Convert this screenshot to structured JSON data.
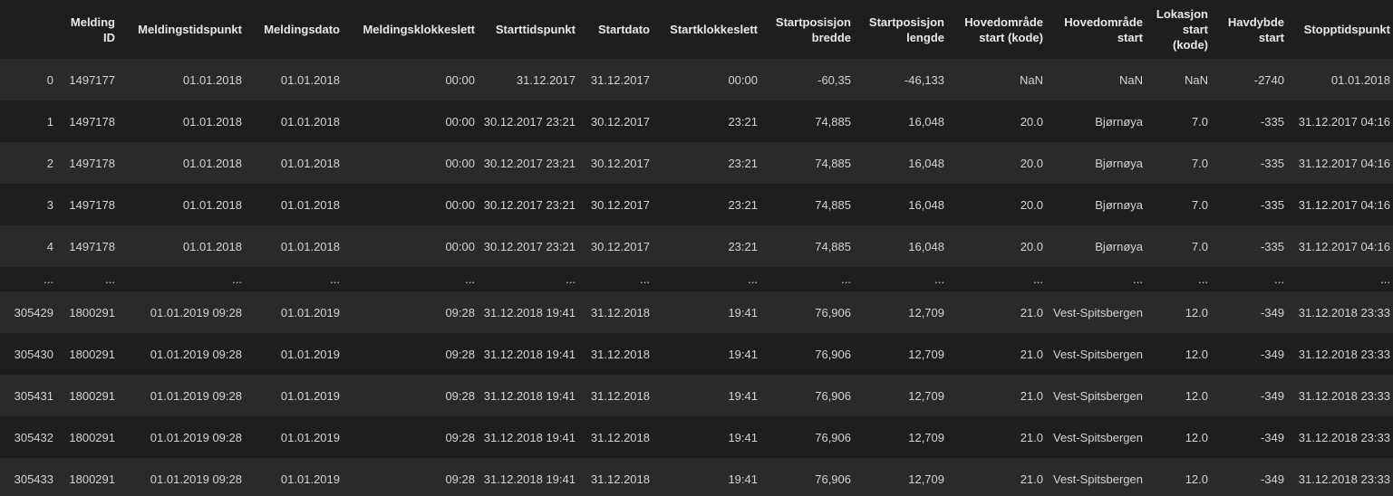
{
  "columns": [
    "",
    "Melding ID",
    "Meldingstidspunkt",
    "Meldingsdato",
    "Meldingsklokkeslett",
    "Starttidspunkt",
    "Startdato",
    "Startklokkeslett",
    "Startposisjon bredde",
    "Startposisjon lengde",
    "Hovedområde start (kode)",
    "Hovedområde start",
    "Lokasjon start (kode)",
    "Havdybde start",
    "Stopptidspunkt"
  ],
  "rows": [
    [
      "0",
      "1497177",
      "01.01.2018",
      "01.01.2018",
      "00:00",
      "31.12.2017",
      "31.12.2017",
      "00:00",
      "-60,35",
      "-46,133",
      "NaN",
      "NaN",
      "NaN",
      "-2740",
      "01.01.2018"
    ],
    [
      "1",
      "1497178",
      "01.01.2018",
      "01.01.2018",
      "00:00",
      "30.12.2017 23:21",
      "30.12.2017",
      "23:21",
      "74,885",
      "16,048",
      "20.0",
      "Bjørnøya",
      "7.0",
      "-335",
      "31.12.2017 04:16"
    ],
    [
      "2",
      "1497178",
      "01.01.2018",
      "01.01.2018",
      "00:00",
      "30.12.2017 23:21",
      "30.12.2017",
      "23:21",
      "74,885",
      "16,048",
      "20.0",
      "Bjørnøya",
      "7.0",
      "-335",
      "31.12.2017 04:16"
    ],
    [
      "3",
      "1497178",
      "01.01.2018",
      "01.01.2018",
      "00:00",
      "30.12.2017 23:21",
      "30.12.2017",
      "23:21",
      "74,885",
      "16,048",
      "20.0",
      "Bjørnøya",
      "7.0",
      "-335",
      "31.12.2017 04:16"
    ],
    [
      "4",
      "1497178",
      "01.01.2018",
      "01.01.2018",
      "00:00",
      "30.12.2017 23:21",
      "30.12.2017",
      "23:21",
      "74,885",
      "16,048",
      "20.0",
      "Bjørnøya",
      "7.0",
      "-335",
      "31.12.2017 04:16"
    ],
    [
      "...",
      "...",
      "...",
      "...",
      "...",
      "...",
      "...",
      "...",
      "...",
      "...",
      "...",
      "...",
      "...",
      "...",
      "..."
    ],
    [
      "305429",
      "1800291",
      "01.01.2019 09:28",
      "01.01.2019",
      "09:28",
      "31.12.2018 19:41",
      "31.12.2018",
      "19:41",
      "76,906",
      "12,709",
      "21.0",
      "Vest-Spitsbergen",
      "12.0",
      "-349",
      "31.12.2018 23:33"
    ],
    [
      "305430",
      "1800291",
      "01.01.2019 09:28",
      "01.01.2019",
      "09:28",
      "31.12.2018 19:41",
      "31.12.2018",
      "19:41",
      "76,906",
      "12,709",
      "21.0",
      "Vest-Spitsbergen",
      "12.0",
      "-349",
      "31.12.2018 23:33"
    ],
    [
      "305431",
      "1800291",
      "01.01.2019 09:28",
      "01.01.2019",
      "09:28",
      "31.12.2018 19:41",
      "31.12.2018",
      "19:41",
      "76,906",
      "12,709",
      "21.0",
      "Vest-Spitsbergen",
      "12.0",
      "-349",
      "31.12.2018 23:33"
    ],
    [
      "305432",
      "1800291",
      "01.01.2019 09:28",
      "01.01.2019",
      "09:28",
      "31.12.2018 19:41",
      "31.12.2018",
      "19:41",
      "76,906",
      "12,709",
      "21.0",
      "Vest-Spitsbergen",
      "12.0",
      "-349",
      "31.12.2018 23:33"
    ],
    [
      "305433",
      "1800291",
      "01.01.2019 09:28",
      "01.01.2019",
      "09:28",
      "31.12.2018 19:41",
      "31.12.2018",
      "19:41",
      "76,906",
      "12,709",
      "21.0",
      "Vest-Spitsbergen",
      "12.0",
      "-349",
      "31.12.2018 23:33"
    ]
  ],
  "colors": {
    "background": "#1e1e1e",
    "row_alt": "#2a2a2a",
    "text": "#d4d4d4",
    "header_text": "#e8e8e8"
  }
}
